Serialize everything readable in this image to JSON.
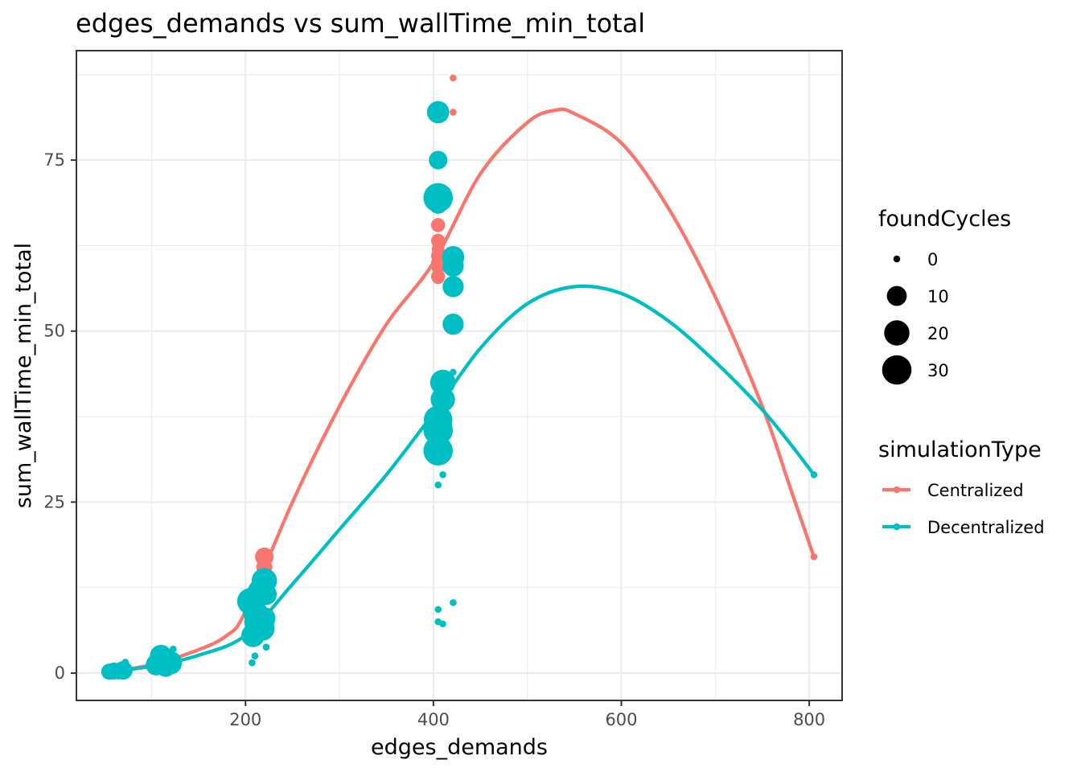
{
  "chart_data": {
    "type": "scatter",
    "title": "edges_demands  vs  sum_wallTime_min_total",
    "xlabel": "edges_demands",
    "ylabel": "sum_wallTime_min_total",
    "xlim": [
      20,
      835
    ],
    "ylim": [
      -4,
      91
    ],
    "x_ticks": [
      200,
      400,
      600,
      800
    ],
    "x_minor_ticks": [
      100,
      300,
      500,
      700
    ],
    "y_ticks": [
      0,
      25,
      50,
      75
    ],
    "y_minor_ticks": [
      12.5,
      37.5,
      62.5,
      87.5
    ],
    "grid": true,
    "legend_position": "right",
    "size_legend": {
      "title": "foundCycles",
      "entries": [
        {
          "label": "0",
          "value": 0
        },
        {
          "label": "10",
          "value": 10
        },
        {
          "label": "20",
          "value": 20
        },
        {
          "label": "30",
          "value": 30
        }
      ]
    },
    "color_legend": {
      "title": "simulationType",
      "entries": [
        {
          "label": "Centralized",
          "color": "#f8766d"
        },
        {
          "label": "Decentralized",
          "color": "#00bfc4"
        }
      ]
    },
    "series": [
      {
        "name": "Centralized",
        "color": "#f8766d",
        "points": [
          {
            "x": 60,
            "y": 0.3,
            "size": 2
          },
          {
            "x": 70,
            "y": 0.5,
            "size": 3
          },
          {
            "x": 110,
            "y": 1.2,
            "size": 5
          },
          {
            "x": 120,
            "y": 1.8,
            "size": 5
          },
          {
            "x": 205,
            "y": 10.5,
            "size": 5
          },
          {
            "x": 210,
            "y": 12,
            "size": 4
          },
          {
            "x": 215,
            "y": 13.5,
            "size": 3
          },
          {
            "x": 220,
            "y": 17,
            "size": 8
          },
          {
            "x": 220,
            "y": 15.5,
            "size": 5
          },
          {
            "x": 218,
            "y": 11,
            "size": 3
          },
          {
            "x": 405,
            "y": 81,
            "size": 0
          },
          {
            "x": 421,
            "y": 87,
            "size": 0
          },
          {
            "x": 421,
            "y": 82,
            "size": 0
          },
          {
            "x": 405,
            "y": 65.5,
            "size": 3
          },
          {
            "x": 405,
            "y": 63.2,
            "size": 3
          },
          {
            "x": 405,
            "y": 62,
            "size": 2
          },
          {
            "x": 405,
            "y": 61,
            "size": 3
          },
          {
            "x": 405,
            "y": 60,
            "size": 3
          },
          {
            "x": 405,
            "y": 59.2,
            "size": 2
          },
          {
            "x": 405,
            "y": 58,
            "size": 3
          },
          {
            "x": 405,
            "y": 57.8,
            "size": 2
          },
          {
            "x": 421,
            "y": 60.5,
            "size": 4
          },
          {
            "x": 805,
            "y": 17,
            "size": 0
          }
        ],
        "fit_line": [
          {
            "x": 55,
            "y": 0.2
          },
          {
            "x": 100,
            "y": 1.2
          },
          {
            "x": 150,
            "y": 3.4
          },
          {
            "x": 180,
            "y": 5.5
          },
          {
            "x": 200,
            "y": 9
          },
          {
            "x": 250,
            "y": 25
          },
          {
            "x": 300,
            "y": 39
          },
          {
            "x": 350,
            "y": 51
          },
          {
            "x": 400,
            "y": 60
          },
          {
            "x": 450,
            "y": 73
          },
          {
            "x": 500,
            "y": 80.5
          },
          {
            "x": 530,
            "y": 82.3
          },
          {
            "x": 550,
            "y": 81.8
          },
          {
            "x": 600,
            "y": 77.5
          },
          {
            "x": 650,
            "y": 68
          },
          {
            "x": 700,
            "y": 55
          },
          {
            "x": 750,
            "y": 39
          },
          {
            "x": 780,
            "y": 27
          },
          {
            "x": 805,
            "y": 17
          }
        ]
      },
      {
        "name": "Decentralized",
        "color": "#00bfc4",
        "points": [
          {
            "x": 55,
            "y": 0.2,
            "size": 5
          },
          {
            "x": 60,
            "y": 0.3,
            "size": 6
          },
          {
            "x": 65,
            "y": 0.1,
            "size": 3
          },
          {
            "x": 70,
            "y": 0.4,
            "size": 8
          },
          {
            "x": 72,
            "y": 1.6,
            "size": 0
          },
          {
            "x": 105,
            "y": 1.2,
            "size": 12
          },
          {
            "x": 110,
            "y": 2.5,
            "size": 14
          },
          {
            "x": 115,
            "y": 0.9,
            "size": 10
          },
          {
            "x": 120,
            "y": 1.5,
            "size": 16
          },
          {
            "x": 123,
            "y": 3.5,
            "size": 0
          },
          {
            "x": 205,
            "y": 10.5,
            "size": 22
          },
          {
            "x": 210,
            "y": 9,
            "size": 18
          },
          {
            "x": 215,
            "y": 12,
            "size": 16
          },
          {
            "x": 220,
            "y": 13.5,
            "size": 20
          },
          {
            "x": 212,
            "y": 7.5,
            "size": 20
          },
          {
            "x": 218,
            "y": 6.5,
            "size": 18
          },
          {
            "x": 208,
            "y": 5.5,
            "size": 16
          },
          {
            "x": 220,
            "y": 8,
            "size": 14
          },
          {
            "x": 222,
            "y": 11.5,
            "size": 12
          },
          {
            "x": 210,
            "y": 2.5,
            "size": 0
          },
          {
            "x": 207,
            "y": 1.5,
            "size": 0
          },
          {
            "x": 222,
            "y": 3.8,
            "size": 0
          },
          {
            "x": 405,
            "y": 82,
            "size": 14
          },
          {
            "x": 405,
            "y": 75,
            "size": 8
          },
          {
            "x": 405,
            "y": 69.5,
            "size": 30
          },
          {
            "x": 405,
            "y": 68.5,
            "size": 8
          },
          {
            "x": 421,
            "y": 60.8,
            "size": 14
          },
          {
            "x": 421,
            "y": 59.5,
            "size": 12
          },
          {
            "x": 421,
            "y": 56.5,
            "size": 12
          },
          {
            "x": 421,
            "y": 51,
            "size": 12
          },
          {
            "x": 410,
            "y": 42.5,
            "size": 20
          },
          {
            "x": 410,
            "y": 40,
            "size": 18
          },
          {
            "x": 405,
            "y": 37,
            "size": 28
          },
          {
            "x": 405,
            "y": 35.5,
            "size": 30
          },
          {
            "x": 405,
            "y": 32.5,
            "size": 30
          },
          {
            "x": 421,
            "y": 44,
            "size": 0
          },
          {
            "x": 410,
            "y": 29,
            "size": 0
          },
          {
            "x": 405,
            "y": 27.5,
            "size": 0
          },
          {
            "x": 405,
            "y": 9.3,
            "size": 0
          },
          {
            "x": 421,
            "y": 10.3,
            "size": 0
          },
          {
            "x": 405,
            "y": 7.5,
            "size": 0
          },
          {
            "x": 410,
            "y": 7.2,
            "size": 0
          },
          {
            "x": 805,
            "y": 29,
            "size": 0
          }
        ],
        "fit_line": [
          {
            "x": 55,
            "y": 0.2
          },
          {
            "x": 100,
            "y": 1
          },
          {
            "x": 150,
            "y": 2.6
          },
          {
            "x": 200,
            "y": 5.5
          },
          {
            "x": 250,
            "y": 13
          },
          {
            "x": 300,
            "y": 21
          },
          {
            "x": 350,
            "y": 29
          },
          {
            "x": 400,
            "y": 38
          },
          {
            "x": 450,
            "y": 47.5
          },
          {
            "x": 500,
            "y": 54
          },
          {
            "x": 550,
            "y": 56.5
          },
          {
            "x": 600,
            "y": 55.5
          },
          {
            "x": 650,
            "y": 51.5
          },
          {
            "x": 700,
            "y": 45.5
          },
          {
            "x": 750,
            "y": 38.5
          },
          {
            "x": 780,
            "y": 33.5
          },
          {
            "x": 805,
            "y": 29
          }
        ]
      }
    ]
  }
}
